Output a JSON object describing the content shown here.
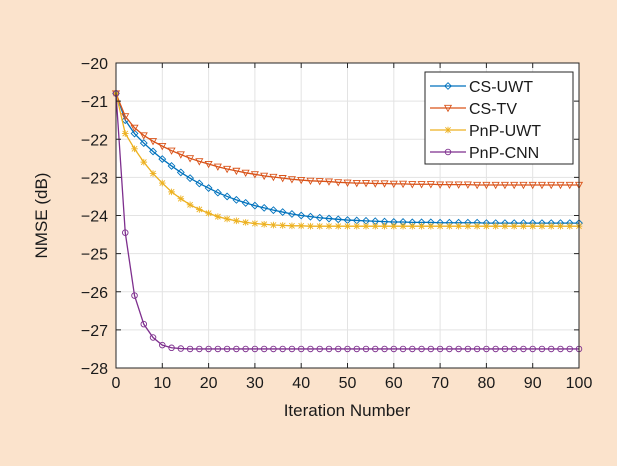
{
  "chart_data": {
    "type": "line",
    "title": "",
    "xlabel": "Iteration Number",
    "ylabel": "NMSE (dB)",
    "xlim": [
      0,
      100
    ],
    "ylim": [
      -28,
      -20
    ],
    "xticks": [
      0,
      10,
      20,
      30,
      40,
      50,
      60,
      70,
      80,
      90,
      100
    ],
    "yticks": [
      -20,
      -21,
      -22,
      -23,
      -24,
      -25,
      -26,
      -27,
      -28
    ],
    "xtick_labels": [
      "0",
      "10",
      "20",
      "30",
      "40",
      "50",
      "60",
      "70",
      "80",
      "90",
      "100"
    ],
    "ytick_labels": [
      "−20",
      "−21",
      "−22",
      "−23",
      "−24",
      "−25",
      "−26",
      "−27",
      "−28"
    ],
    "grid": true,
    "legend_position": "top-right",
    "series": [
      {
        "name": "CS-UWT",
        "color": "#0072bd",
        "marker": "diamond",
        "x": [
          0,
          2,
          4,
          6,
          8,
          10,
          12,
          14,
          16,
          18,
          20,
          22,
          24,
          26,
          28,
          30,
          32,
          34,
          36,
          38,
          40,
          42,
          44,
          46,
          48,
          50,
          52,
          54,
          56,
          58,
          60,
          62,
          64,
          66,
          68,
          70,
          72,
          74,
          76,
          78,
          80,
          82,
          84,
          86,
          88,
          90,
          92,
          94,
          96,
          98,
          100
        ],
        "y": [
          -20.8,
          -21.5,
          -21.85,
          -22.1,
          -22.32,
          -22.52,
          -22.7,
          -22.87,
          -23.02,
          -23.16,
          -23.28,
          -23.4,
          -23.5,
          -23.59,
          -23.67,
          -23.74,
          -23.8,
          -23.86,
          -23.91,
          -23.96,
          -24.0,
          -24.03,
          -24.06,
          -24.08,
          -24.1,
          -24.12,
          -24.13,
          -24.14,
          -24.15,
          -24.16,
          -24.17,
          -24.17,
          -24.18,
          -24.18,
          -24.18,
          -24.19,
          -24.19,
          -24.19,
          -24.19,
          -24.19,
          -24.2,
          -24.2,
          -24.2,
          -24.2,
          -24.2,
          -24.2,
          -24.2,
          -24.2,
          -24.2,
          -24.2,
          -24.2
        ]
      },
      {
        "name": "CS-TV",
        "color": "#d95319",
        "marker": "triangle-down",
        "x": [
          0,
          2,
          4,
          6,
          8,
          10,
          12,
          14,
          16,
          18,
          20,
          22,
          24,
          26,
          28,
          30,
          32,
          34,
          36,
          38,
          40,
          42,
          44,
          46,
          48,
          50,
          52,
          54,
          56,
          58,
          60,
          62,
          64,
          66,
          68,
          70,
          72,
          74,
          76,
          78,
          80,
          82,
          84,
          86,
          88,
          90,
          92,
          94,
          96,
          98,
          100
        ],
        "y": [
          -20.8,
          -21.4,
          -21.7,
          -21.9,
          -22.05,
          -22.18,
          -22.3,
          -22.4,
          -22.5,
          -22.58,
          -22.65,
          -22.72,
          -22.78,
          -22.83,
          -22.88,
          -22.92,
          -22.96,
          -22.99,
          -23.02,
          -23.05,
          -23.07,
          -23.09,
          -23.1,
          -23.11,
          -23.13,
          -23.14,
          -23.15,
          -23.15,
          -23.16,
          -23.16,
          -23.17,
          -23.17,
          -23.18,
          -23.18,
          -23.18,
          -23.19,
          -23.19,
          -23.19,
          -23.19,
          -23.2,
          -23.2,
          -23.2,
          -23.2,
          -23.2,
          -23.2,
          -23.2,
          -23.2,
          -23.2,
          -23.2,
          -23.2,
          -23.2
        ]
      },
      {
        "name": "PnP-UWT",
        "color": "#edb120",
        "marker": "asterisk",
        "x": [
          0,
          2,
          4,
          6,
          8,
          10,
          12,
          14,
          16,
          18,
          20,
          22,
          24,
          26,
          28,
          30,
          32,
          34,
          36,
          38,
          40,
          42,
          44,
          46,
          48,
          50,
          52,
          54,
          56,
          58,
          60,
          62,
          64,
          66,
          68,
          70,
          72,
          74,
          76,
          78,
          80,
          82,
          84,
          86,
          88,
          90,
          92,
          94,
          96,
          98,
          100
        ],
        "y": [
          -20.8,
          -21.85,
          -22.25,
          -22.6,
          -22.9,
          -23.15,
          -23.38,
          -23.56,
          -23.72,
          -23.84,
          -23.94,
          -24.03,
          -24.09,
          -24.14,
          -24.18,
          -24.21,
          -24.23,
          -24.25,
          -24.26,
          -24.27,
          -24.27,
          -24.28,
          -24.28,
          -24.28,
          -24.28,
          -24.28,
          -24.28,
          -24.28,
          -24.28,
          -24.28,
          -24.28,
          -24.28,
          -24.28,
          -24.28,
          -24.28,
          -24.28,
          -24.28,
          -24.28,
          -24.28,
          -24.28,
          -24.28,
          -24.28,
          -24.28,
          -24.28,
          -24.28,
          -24.28,
          -24.28,
          -24.28,
          -24.28,
          -24.28,
          -24.28
        ]
      },
      {
        "name": "PnP-CNN",
        "color": "#7e2f8e",
        "marker": "circle",
        "x": [
          0,
          2,
          4,
          6,
          8,
          10,
          12,
          14,
          16,
          18,
          20,
          22,
          24,
          26,
          28,
          30,
          32,
          34,
          36,
          38,
          40,
          42,
          44,
          46,
          48,
          50,
          52,
          54,
          56,
          58,
          60,
          62,
          64,
          66,
          68,
          70,
          72,
          74,
          76,
          78,
          80,
          82,
          84,
          86,
          88,
          90,
          92,
          94,
          96,
          98,
          100
        ],
        "y": [
          -20.8,
          -24.45,
          -26.1,
          -26.85,
          -27.2,
          -27.4,
          -27.47,
          -27.49,
          -27.5,
          -27.5,
          -27.5,
          -27.5,
          -27.5,
          -27.5,
          -27.5,
          -27.5,
          -27.5,
          -27.5,
          -27.5,
          -27.5,
          -27.5,
          -27.5,
          -27.5,
          -27.5,
          -27.5,
          -27.5,
          -27.5,
          -27.5,
          -27.5,
          -27.5,
          -27.5,
          -27.5,
          -27.5,
          -27.5,
          -27.5,
          -27.5,
          -27.5,
          -27.5,
          -27.5,
          -27.5,
          -27.5,
          -27.5,
          -27.5,
          -27.5,
          -27.5,
          -27.5,
          -27.5,
          -27.5,
          -27.5,
          -27.5,
          -27.5
        ]
      }
    ]
  }
}
